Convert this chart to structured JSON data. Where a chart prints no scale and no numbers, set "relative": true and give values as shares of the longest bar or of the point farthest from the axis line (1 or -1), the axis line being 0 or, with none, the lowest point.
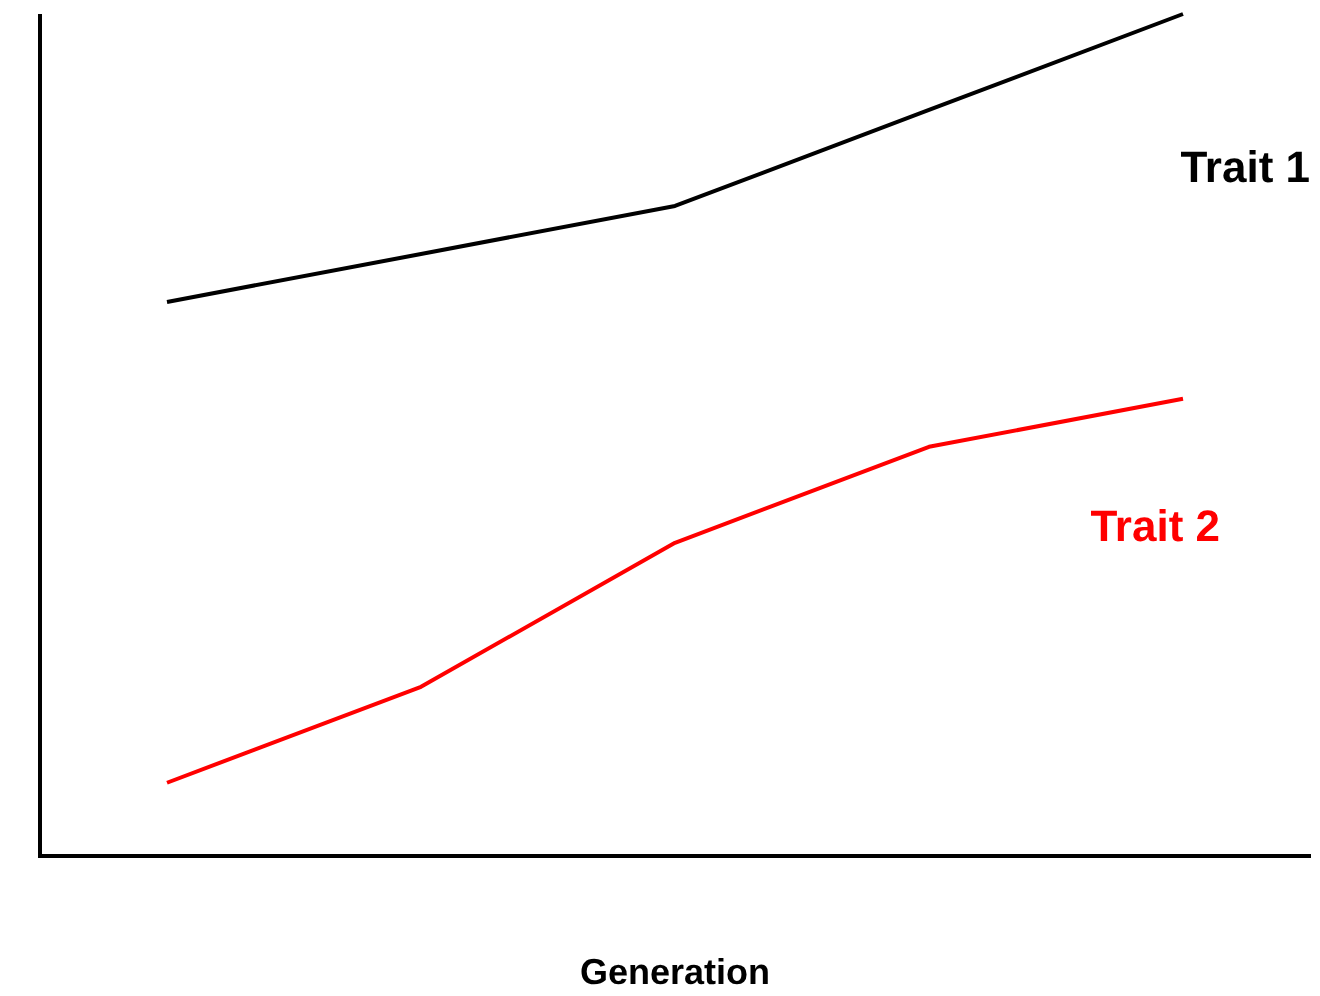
{
  "chart_data": {
    "type": "line",
    "xlabel": "Generation",
    "categories": [
      null,
      null,
      null,
      null,
      null
    ],
    "relative": true,
    "legend": false,
    "marker": "none",
    "grid": false,
    "series": [
      {
        "name": "Trait 1",
        "color": "#000000",
        "values": [
          0.658,
          0.715,
          0.772,
          0.886,
          1
        ]
      },
      {
        "name": "Trait 2",
        "color": "#ff0000",
        "values": [
          0.087,
          0.201,
          0.372,
          0.486,
          0.543
        ]
      }
    ]
  }
}
